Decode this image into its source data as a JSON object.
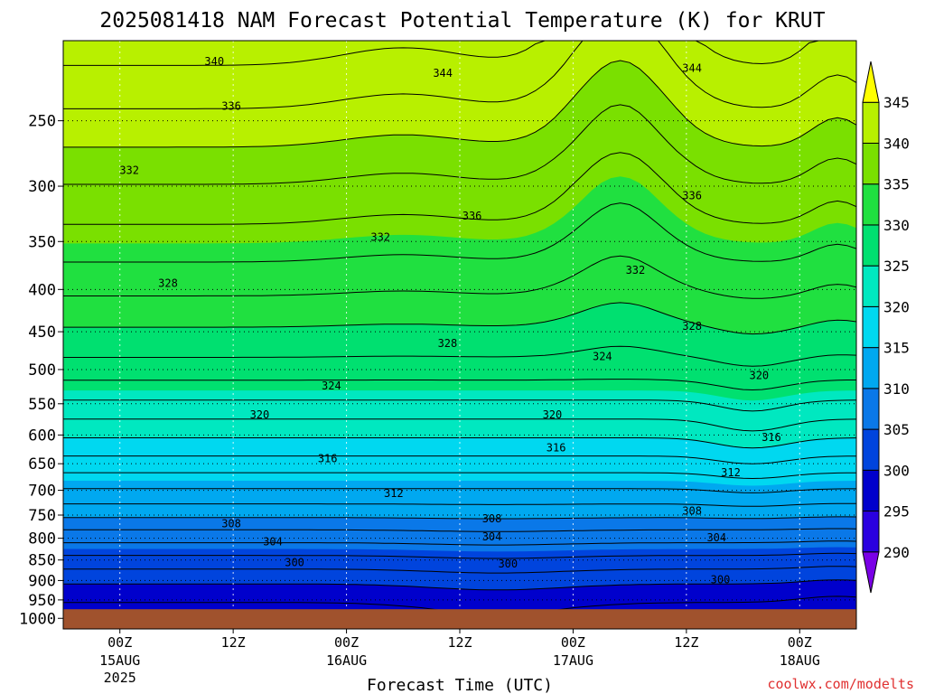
{
  "title": "2025081418 NAM Forecast Potential Temperature (K) for KRUT",
  "credit": "coolwx.com/modelts",
  "colors": {
    "ground": "#a0522d",
    "levels": [
      "#7a00e6",
      "#2a00e0",
      "#0000cc",
      "#0044dd",
      "#0a78e8",
      "#00a8f0",
      "#00d8f0",
      "#00e8c0",
      "#00e070",
      "#20e040",
      "#7ae000",
      "#b8f000",
      "#ffff00"
    ]
  },
  "chart_data": {
    "type": "heatmap",
    "title": "2025081418 NAM Forecast Potential Temperature (K) for KRUT",
    "xlabel": "Forecast Time (UTC)",
    "ylabel": "",
    "variable": "Potential Temperature (K)",
    "x_ticks": [
      {
        "label": "00Z",
        "sub": [
          "15AUG",
          "2025"
        ],
        "hour": 6
      },
      {
        "label": "12Z",
        "sub": [],
        "hour": 18
      },
      {
        "label": "00Z",
        "sub": [
          "16AUG"
        ],
        "hour": 30
      },
      {
        "label": "12Z",
        "sub": [],
        "hour": 42
      },
      {
        "label": "00Z",
        "sub": [
          "17AUG"
        ],
        "hour": 54
      },
      {
        "label": "12Z",
        "sub": [],
        "hour": 66
      },
      {
        "label": "00Z",
        "sub": [
          "18AUG"
        ],
        "hour": 78
      }
    ],
    "x_range_hours": [
      0,
      84
    ],
    "y_ticks": [
      250,
      300,
      350,
      400,
      450,
      500,
      550,
      600,
      650,
      700,
      750,
      800,
      850,
      900,
      950,
      1000
    ],
    "y_range_hPa": [
      200,
      1030
    ],
    "colorbar_ticks": [
      345,
      340,
      335,
      330,
      325,
      320,
      315,
      310,
      305,
      300,
      295,
      290
    ],
    "colorbar_range": [
      285,
      350
    ],
    "contour_interval": 2,
    "contour_labels": [
      {
        "text": "340",
        "hour": 16.0,
        "hPa": 212
      },
      {
        "text": "344",
        "hour": 40.2,
        "hPa": 219
      },
      {
        "text": "344",
        "hour": 66.6,
        "hPa": 216
      },
      {
        "text": "336",
        "hour": 17.8,
        "hPa": 240
      },
      {
        "text": "332",
        "hour": 7.0,
        "hPa": 287
      },
      {
        "text": "336",
        "hour": 43.3,
        "hPa": 326
      },
      {
        "text": "336",
        "hour": 66.6,
        "hPa": 308
      },
      {
        "text": "332",
        "hour": 33.6,
        "hPa": 346
      },
      {
        "text": "332",
        "hour": 60.6,
        "hPa": 379
      },
      {
        "text": "328",
        "hour": 11.1,
        "hPa": 393
      },
      {
        "text": "328",
        "hour": 40.7,
        "hPa": 465
      },
      {
        "text": "328",
        "hour": 66.6,
        "hPa": 443
      },
      {
        "text": "324",
        "hour": 57.1,
        "hPa": 482
      },
      {
        "text": "324",
        "hour": 28.4,
        "hPa": 523
      },
      {
        "text": "320",
        "hour": 73.7,
        "hPa": 508
      },
      {
        "text": "320",
        "hour": 20.8,
        "hPa": 567
      },
      {
        "text": "320",
        "hour": 51.8,
        "hPa": 567
      },
      {
        "text": "316",
        "hour": 75.0,
        "hPa": 604
      },
      {
        "text": "316",
        "hour": 52.2,
        "hPa": 622
      },
      {
        "text": "316",
        "hour": 28.0,
        "hPa": 641
      },
      {
        "text": "312",
        "hour": 70.7,
        "hPa": 666
      },
      {
        "text": "312",
        "hour": 35.0,
        "hPa": 706
      },
      {
        "text": "308",
        "hour": 45.4,
        "hPa": 758
      },
      {
        "text": "308",
        "hour": 17.8,
        "hPa": 768
      },
      {
        "text": "308",
        "hour": 66.6,
        "hPa": 742
      },
      {
        "text": "304",
        "hour": 45.4,
        "hPa": 797
      },
      {
        "text": "304",
        "hour": 22.2,
        "hPa": 808
      },
      {
        "text": "304",
        "hour": 69.2,
        "hPa": 799
      },
      {
        "text": "300",
        "hour": 24.5,
        "hPa": 856
      },
      {
        "text": "300",
        "hour": 47.1,
        "hPa": 859
      },
      {
        "text": "300",
        "hour": 69.6,
        "hPa": 898
      }
    ]
  }
}
